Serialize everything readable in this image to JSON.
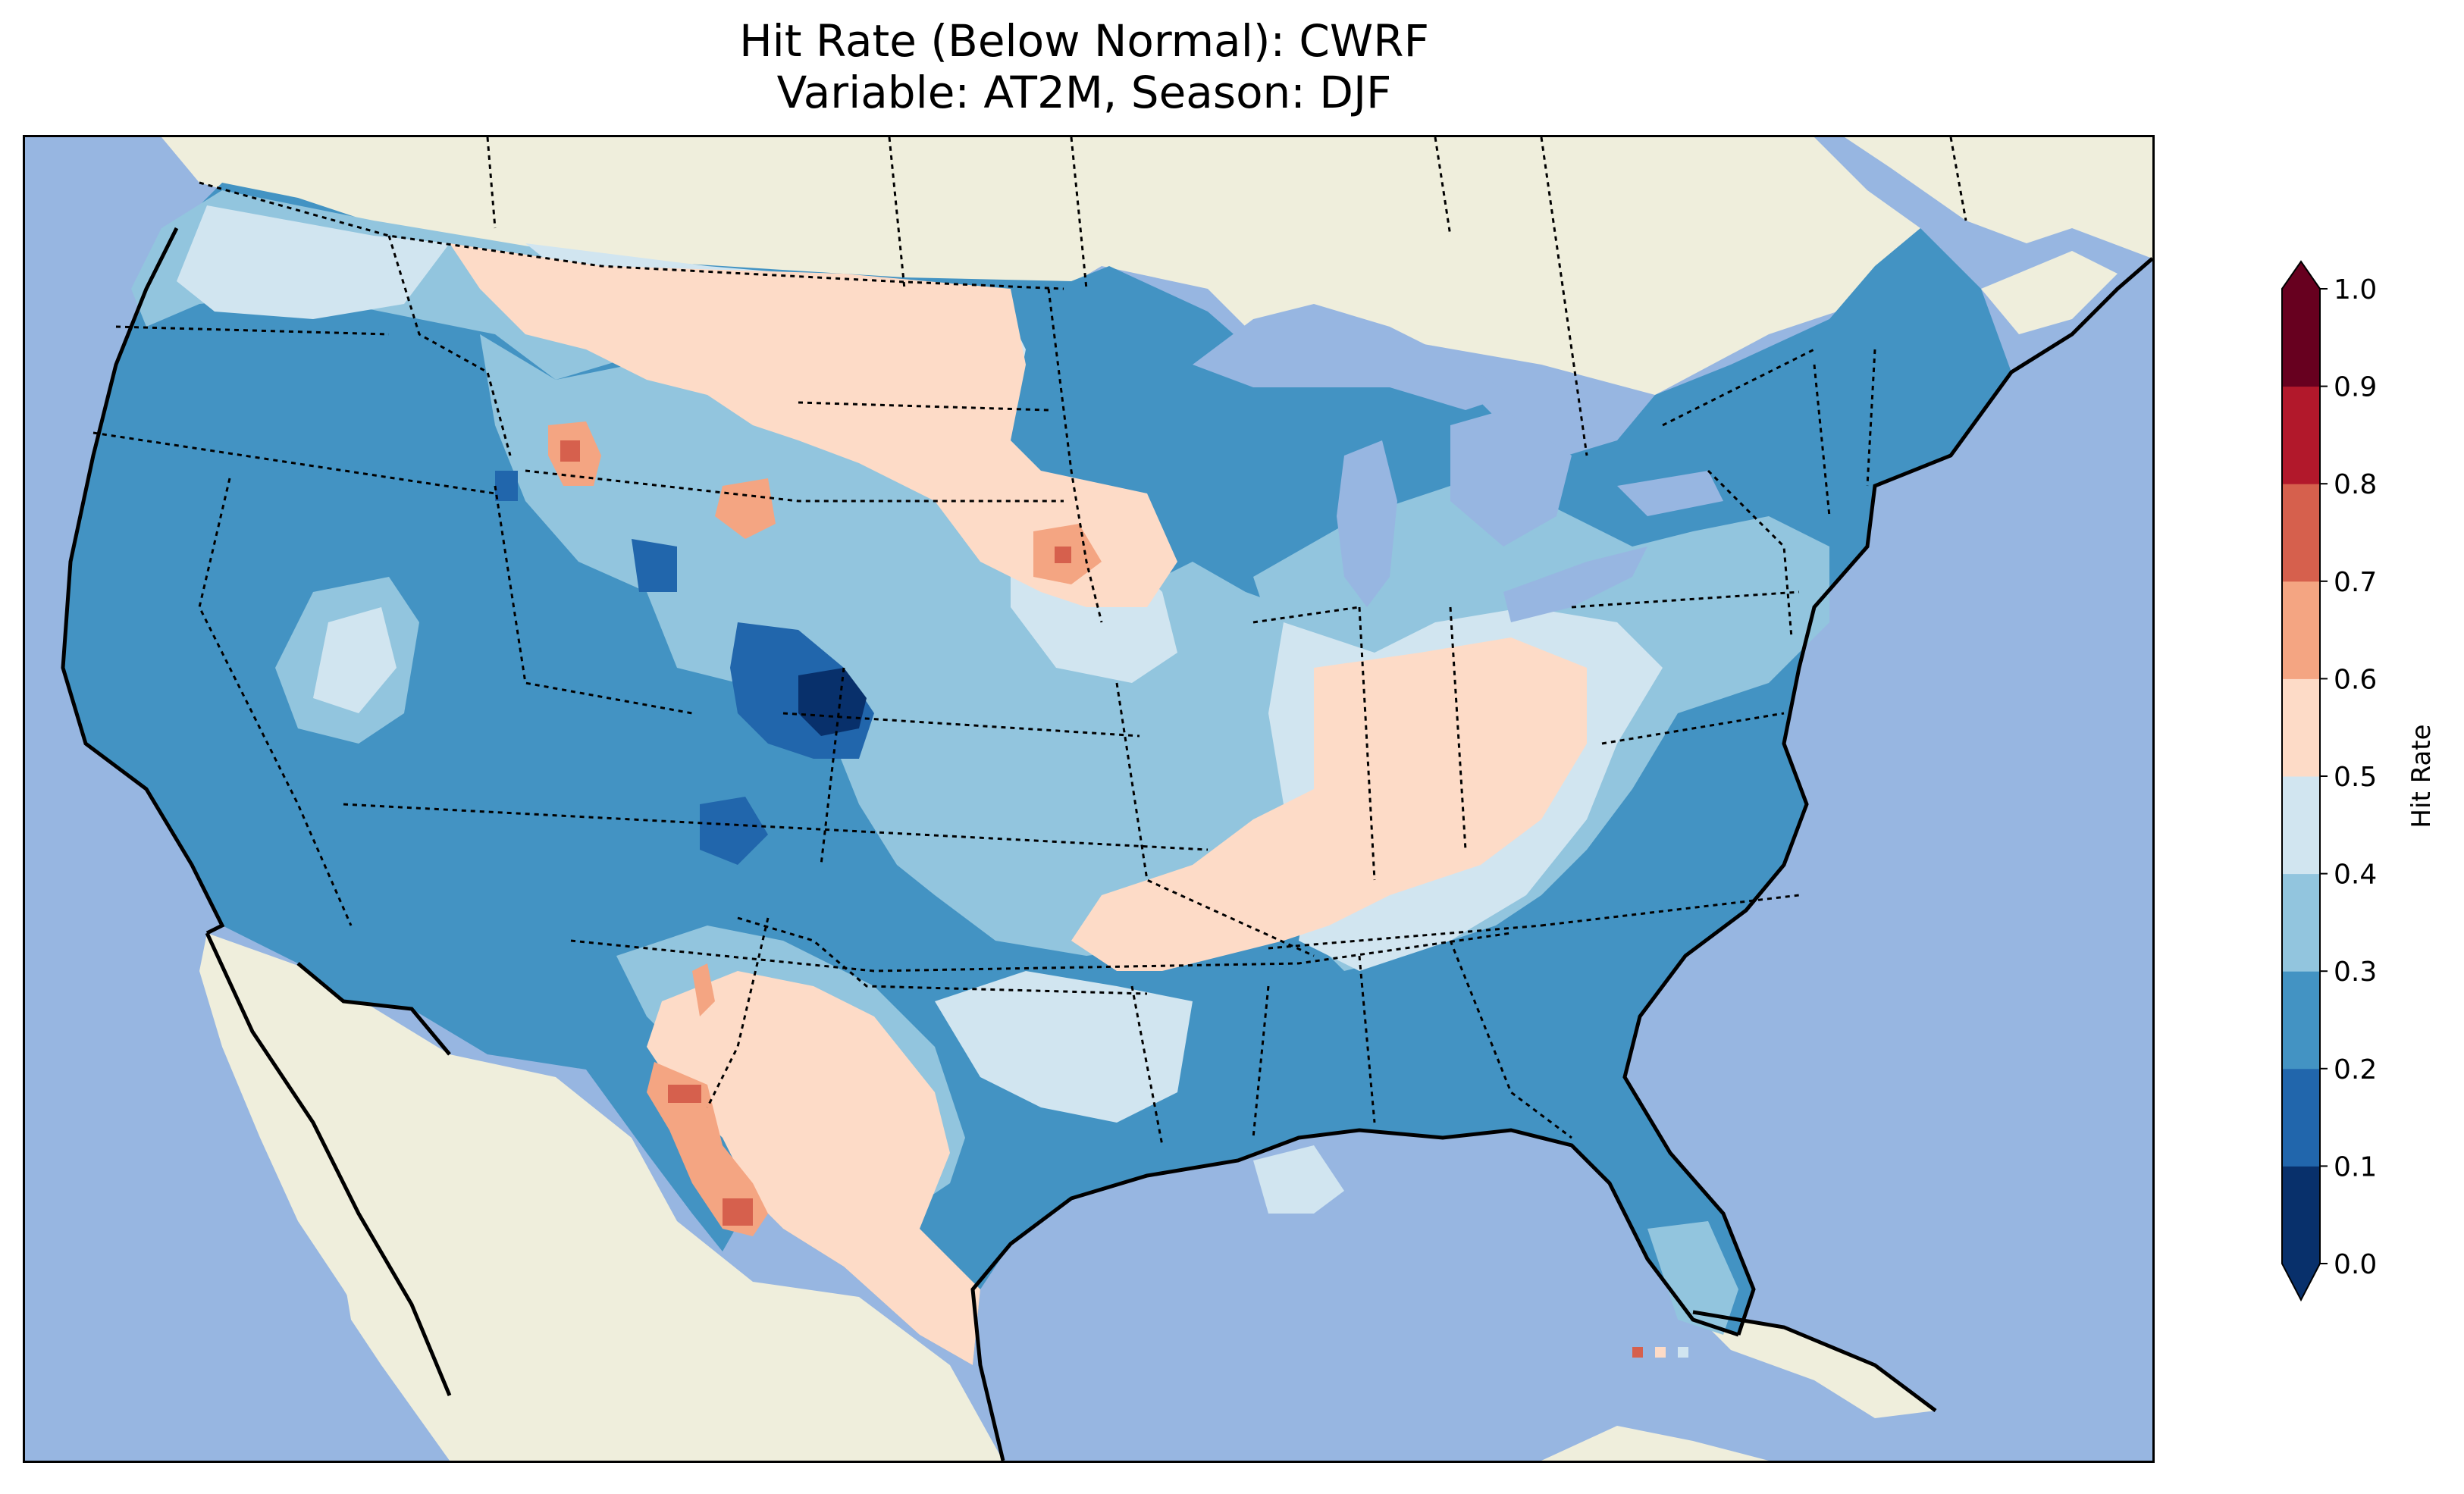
{
  "title": {
    "line1": "Hit Rate (Below Normal): CWRF",
    "line2": "Variable: AT2M, Season: DJF"
  },
  "colors": {
    "ocean": "#97b6e1",
    "land": "#efeedc",
    "bins": [
      "#08306b",
      "#2166ac",
      "#4393c3",
      "#92c5de",
      "#d1e5f0",
      "#fddbc7",
      "#f4a582",
      "#d6604d",
      "#b2182b",
      "#67001f"
    ]
  },
  "colorbar": {
    "label": "Hit Rate",
    "ticks": [
      "0.0",
      "0.1",
      "0.2",
      "0.3",
      "0.4",
      "0.5",
      "0.6",
      "0.7",
      "0.8",
      "0.9",
      "1.0"
    ],
    "extend": "both"
  }
}
